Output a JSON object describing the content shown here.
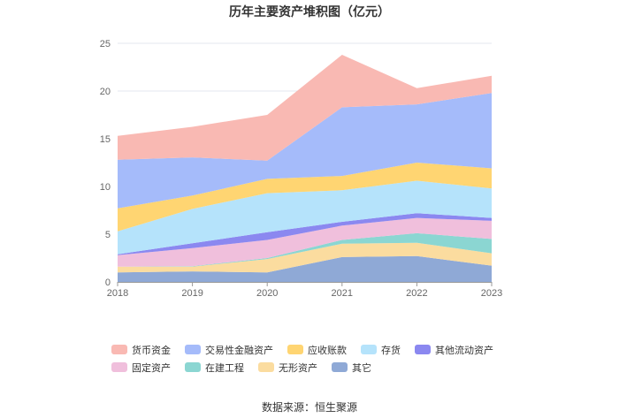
{
  "chart_data": {
    "type": "area",
    "stacked": true,
    "title": "历年主要资产堆积图（亿元）",
    "xlabel": "",
    "ylabel": "",
    "ylim": [
      0,
      25
    ],
    "yticks": [
      0,
      5,
      10,
      15,
      20,
      25
    ],
    "categories": [
      "2018",
      "2019",
      "2020",
      "2021",
      "2022",
      "2023"
    ],
    "series": [
      {
        "name": "其它",
        "color": "#8fa9d6",
        "values": [
          1.0,
          1.1,
          1.0,
          2.6,
          2.7,
          1.7
        ]
      },
      {
        "name": "无形资产",
        "color": "#fbdc9f",
        "values": [
          0.6,
          0.5,
          1.4,
          1.4,
          1.4,
          1.3
        ]
      },
      {
        "name": "在建工程",
        "color": "#8bd6d2",
        "values": [
          0.0,
          0.05,
          0.1,
          0.4,
          1.0,
          1.5
        ]
      },
      {
        "name": "固定资产",
        "color": "#f0bfdc",
        "values": [
          1.2,
          1.9,
          1.9,
          1.5,
          1.6,
          1.9
        ]
      },
      {
        "name": "其他流动资产",
        "color": "#8b88f0",
        "values": [
          0.1,
          0.5,
          0.8,
          0.4,
          0.5,
          0.3
        ]
      },
      {
        "name": "存货",
        "color": "#b5e3fb",
        "values": [
          2.4,
          3.6,
          4.1,
          3.3,
          3.4,
          3.1
        ]
      },
      {
        "name": "应收账款",
        "color": "#ffd572",
        "values": [
          2.4,
          1.4,
          1.5,
          1.5,
          1.9,
          2.1
        ]
      },
      {
        "name": "交易性金融资产",
        "color": "#a5bbfa",
        "values": [
          5.1,
          4.0,
          1.9,
          7.2,
          6.1,
          7.9
        ]
      },
      {
        "name": "货币资金",
        "color": "#f9b9b3",
        "values": [
          2.5,
          3.2,
          4.8,
          5.5,
          1.7,
          1.8
        ]
      }
    ],
    "legend_order": [
      "货币资金",
      "交易性金融资产",
      "应收账款",
      "存货",
      "其他流动资产",
      "固定资产",
      "在建工程",
      "无形资产",
      "其它"
    ],
    "legend_position": "bottom"
  },
  "footer": {
    "source": "数据来源：恒生聚源"
  }
}
